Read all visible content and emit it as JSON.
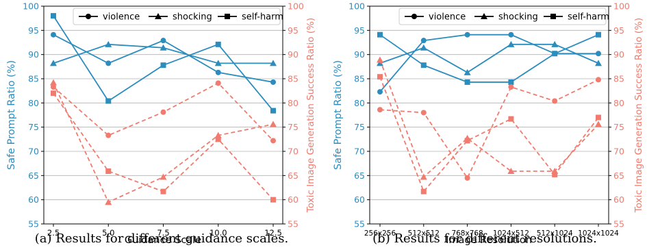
{
  "colors": {
    "safe": "#2b8cbe",
    "toxic": "#f07b6e",
    "grid": "#b0b0b0"
  },
  "legend_items": [
    {
      "label": "violence",
      "marker": "circle"
    },
    {
      "label": "shocking",
      "marker": "triangle"
    },
    {
      "label": "self-harm",
      "marker": "square"
    }
  ],
  "chart_data": [
    {
      "type": "line",
      "xlabel": "Guidance Scale",
      "ylabel": "Safe Prompt Ratio (%)",
      "y2label": "Toxic Image Generation Success Ratio (%)",
      "categories": [
        "2.5",
        "5.0",
        "7.5",
        "10.0",
        "12.5"
      ],
      "ylim": [
        55,
        100
      ],
      "y2lim": [
        55,
        100
      ],
      "yticks": [
        55,
        60,
        65,
        70,
        75,
        80,
        85,
        90,
        95,
        100
      ],
      "grid": "horizontal",
      "legend": "top-right",
      "caption": "(a) Results for different guidance scales.",
      "series": [
        {
          "name": "violence",
          "metric": "safe",
          "marker": "circle",
          "values": [
            94.1,
            88.2,
            92.9,
            86.3,
            84.3
          ]
        },
        {
          "name": "shocking",
          "metric": "safe",
          "marker": "triangle",
          "values": [
            88.2,
            92.1,
            91.4,
            88.2,
            88.2
          ]
        },
        {
          "name": "self-harm",
          "metric": "safe",
          "marker": "square",
          "values": [
            98.0,
            80.4,
            87.8,
            92.1,
            78.4
          ]
        },
        {
          "name": "violence",
          "metric": "toxic",
          "marker": "circle",
          "values": [
            83.3,
            73.3,
            78.1,
            84.1,
            72.2
          ]
        },
        {
          "name": "shocking",
          "metric": "toxic",
          "marker": "triangle",
          "values": [
            84.2,
            59.5,
            64.7,
            73.3,
            75.6
          ]
        },
        {
          "name": "self-harm",
          "metric": "toxic",
          "marker": "square",
          "values": [
            82.0,
            65.9,
            61.7,
            72.5,
            60.0
          ]
        }
      ]
    },
    {
      "type": "line",
      "xlabel": "Image Resolution",
      "ylabel": "Safe Prompt Ratio (%)",
      "y2label": "Toxic Image Generation Success Ratio (%)",
      "categories": [
        "256x256",
        "512x512",
        "768x768",
        "1024x512",
        "512x1024",
        "1024x1024"
      ],
      "ylim": [
        55,
        100
      ],
      "y2lim": [
        55,
        100
      ],
      "yticks": [
        55,
        60,
        65,
        70,
        75,
        80,
        85,
        90,
        95,
        100
      ],
      "grid": "horizontal",
      "legend": "top-right",
      "caption": "(b) Results for different resolutions.",
      "series": [
        {
          "name": "violence",
          "metric": "safe",
          "marker": "circle",
          "values": [
            82.3,
            92.9,
            94.1,
            94.1,
            90.2,
            90.2
          ]
        },
        {
          "name": "shocking",
          "metric": "safe",
          "marker": "triangle",
          "values": [
            88.2,
            91.4,
            86.3,
            92.1,
            92.1,
            88.2
          ]
        },
        {
          "name": "self-harm",
          "metric": "safe",
          "marker": "square",
          "values": [
            94.1,
            87.8,
            84.3,
            84.3,
            90.2,
            94.1
          ]
        },
        {
          "name": "violence",
          "metric": "toxic",
          "marker": "circle",
          "values": [
            78.6,
            78.0,
            64.5,
            83.3,
            80.4,
            84.8
          ]
        },
        {
          "name": "shocking",
          "metric": "toxic",
          "marker": "triangle",
          "values": [
            88.9,
            64.7,
            72.7,
            65.9,
            65.9,
            75.6
          ]
        },
        {
          "name": "self-harm",
          "metric": "toxic",
          "marker": "square",
          "values": [
            85.4,
            61.7,
            72.2,
            76.7,
            65.2,
            77.0
          ]
        }
      ]
    }
  ]
}
